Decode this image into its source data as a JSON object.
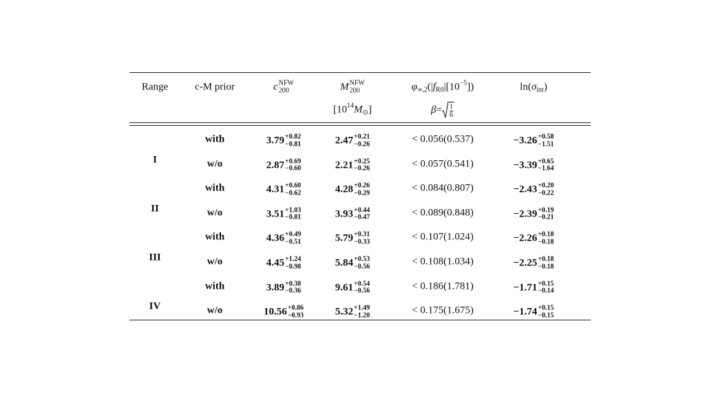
{
  "table": {
    "header": [
      {
        "line1": [
          {
            "t": "Range"
          }
        ]
      },
      {
        "line1": [
          {
            "t": "c-M prior"
          }
        ]
      },
      {
        "line1": [
          {
            "i": "c"
          },
          {
            "sup": "NFW",
            "sub": "200"
          }
        ]
      },
      {
        "line1": [
          {
            "i": "M"
          },
          {
            "sup": "NFW",
            "sub": "200"
          }
        ],
        "line2": [
          {
            "t": "[10"
          },
          {
            "sup": "14"
          },
          {
            "t": " "
          },
          {
            "i": "M"
          },
          {
            "sub": "⊙"
          },
          {
            "t": "]"
          }
        ]
      },
      {
        "line1": [
          {
            "i": "φ"
          },
          {
            "sub": "∞,2"
          },
          {
            "t": "(|"
          },
          {
            "i": "f"
          },
          {
            "sub": "R0"
          },
          {
            "t": "|[10"
          },
          {
            "sup": "−5"
          },
          {
            "t": "])"
          }
        ],
        "line2": [
          {
            "i": "β"
          },
          {
            "t": " = "
          },
          {
            "num": "1",
            "den": "6"
          }
        ]
      },
      {
        "line1": [
          {
            "t": "ln("
          },
          {
            "i": "σ"
          },
          {
            "sub": "int"
          },
          {
            "t": ")"
          }
        ]
      }
    ],
    "groups": [
      {
        "range": "I",
        "rows": [
          {
            "prior": "with",
            "c200": [
              "3.79",
              "+0.82",
              "−0.81"
            ],
            "m200": [
              "2.47",
              "+0.21",
              "−0.26"
            ],
            "phi": "< 0.056(0.537)",
            "ln": [
              "−3.26",
              "+0.58",
              "−1.51"
            ]
          },
          {
            "prior": "w/o",
            "c200": [
              "2.87",
              "+0.69",
              "−0.60"
            ],
            "m200": [
              "2.21",
              "+0.25",
              "−0.26"
            ],
            "phi": "< 0.057(0.541)",
            "ln": [
              "−3.39",
              "+0.65",
              "−1.64"
            ]
          }
        ]
      },
      {
        "range": "II",
        "rows": [
          {
            "prior": "with",
            "c200": [
              "4.31",
              "+0.60",
              "−0.62"
            ],
            "m200": [
              "4.28",
              "+0.26",
              "−0.29"
            ],
            "phi": "< 0.084(0.807)",
            "ln": [
              "−2.43",
              "+0.20",
              "−0.22"
            ]
          },
          {
            "prior": "w/o",
            "c200": [
              "3.51",
              "+1.03",
              "−0.81"
            ],
            "m200": [
              "3.93",
              "+0.44",
              "−0.47"
            ],
            "phi": "< 0.089(0.848)",
            "ln": [
              "−2.39",
              "+0.19",
              "−0.21"
            ]
          }
        ]
      },
      {
        "range": "III",
        "rows": [
          {
            "prior": "with",
            "c200": [
              "4.36",
              "+0.49",
              "−0.51"
            ],
            "m200": [
              "5.79",
              "+0.31",
              "−0.33"
            ],
            "phi": "< 0.107(1.024)",
            "ln": [
              "−2.26",
              "+0.18",
              "−0.18"
            ]
          },
          {
            "prior": "w/o",
            "c200": [
              "4.45",
              "+1.24",
              "−0.98"
            ],
            "m200": [
              "5.84",
              "+0.53",
              "−0.56"
            ],
            "phi": "< 0.108(1.034)",
            "ln": [
              "−2.25",
              "+0.18",
              "−0.18"
            ]
          }
        ]
      },
      {
        "range": "IV",
        "rows": [
          {
            "prior": "with",
            "c200": [
              "3.89",
              "+0.38",
              "−0.36"
            ],
            "m200": [
              "9.61",
              "+0.54",
              "−0.56"
            ],
            "phi": "< 0.186(1.781)",
            "ln": [
              "−1.71",
              "+0.15",
              "−0.14"
            ]
          },
          {
            "prior": "w/o",
            "c200": [
              "10.56",
              "+0.86",
              "−0.93"
            ],
            "m200": [
              "5.32",
              "+1.49",
              "−1.20"
            ],
            "phi": "< 0.175(1.675)",
            "ln": [
              "−1.74",
              "+0.15",
              "−0.15"
            ]
          }
        ]
      }
    ]
  }
}
